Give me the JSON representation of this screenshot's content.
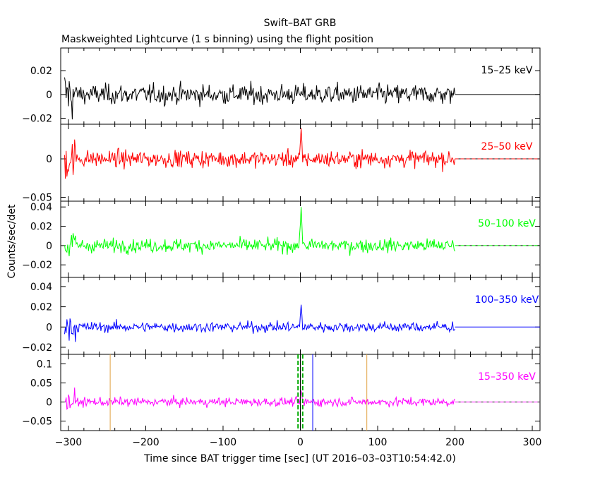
{
  "title": "Swift–BAT GRB",
  "subtitle": "Maskweighted Lightcurve (1 s binning) using the flight position",
  "chart_data": {
    "type": "line",
    "xlabel": "Time since BAT trigger time [sec] (UT 2016–03–03T10:54:42.0)",
    "ylabel": "Counts/sec/det",
    "xlim": [
      -310,
      310
    ],
    "x_ticks": [
      "−300",
      "−200",
      "−100",
      "0",
      "100",
      "200",
      "300"
    ],
    "x_tick_values": [
      -300,
      -200,
      -100,
      0,
      100,
      200,
      300
    ],
    "data_x_range": [
      -305,
      200
    ],
    "panels": [
      {
        "band": "15–25 keV",
        "color": "#000000",
        "ylim": [
          -0.025,
          0.039
        ],
        "y_ticks": [
          "0.02",
          "0",
          "−0.02"
        ],
        "y_tick_values": [
          0.02,
          0,
          -0.02
        ],
        "noise_sigma": 0.0065,
        "spike_height": 0.0,
        "zero_line_style": "solid"
      },
      {
        "band": "25–50 keV",
        "color": "#ff0000",
        "ylim": [
          -0.055,
          0.045
        ],
        "y_ticks": [
          "0",
          "−0.05"
        ],
        "y_tick_values": [
          0,
          -0.05
        ],
        "noise_sigma": 0.0085,
        "spike_height": 0.04,
        "zero_line_style": "dashed"
      },
      {
        "band": "50–100 keV",
        "color": "#00ff00",
        "ylim": [
          -0.033,
          0.046
        ],
        "y_ticks": [
          "0.04",
          "0.02",
          "0",
          "−0.02"
        ],
        "y_tick_values": [
          0.04,
          0.02,
          0,
          -0.02
        ],
        "noise_sigma": 0.0055,
        "spike_height": 0.04,
        "zero_line_style": "dashed"
      },
      {
        "band": "100–350 keV",
        "color": "#0000ff",
        "ylim": [
          -0.027,
          0.049
        ],
        "y_ticks": [
          "0.04",
          "0.02",
          "0",
          "−0.02"
        ],
        "y_tick_values": [
          0.04,
          0.02,
          0,
          -0.02
        ],
        "noise_sigma": 0.004,
        "spike_height": 0.022,
        "zero_line_style": "solid"
      },
      {
        "band": "15–350 keV",
        "color": "#ff00ff",
        "ylim": [
          -0.075,
          0.125
        ],
        "y_ticks": [
          "0.1",
          "0.05",
          "0",
          "−0.05"
        ],
        "y_tick_values": [
          0.1,
          0.05,
          0,
          -0.05
        ],
        "noise_sigma": 0.009,
        "spike_height": 0.03,
        "zero_line_style": "dashed"
      }
    ],
    "markers": [
      {
        "x": -246,
        "color": "#e0a040",
        "style": "solid"
      },
      {
        "x": 86,
        "color": "#e0a040",
        "style": "solid"
      },
      {
        "x": -3,
        "color": "#00aa00",
        "style": "dashed"
      },
      {
        "x": 3,
        "color": "#00aa00",
        "style": "dashed"
      },
      {
        "x": 0,
        "color": "#000000",
        "style": "solid"
      },
      {
        "x": 16,
        "color": "#0000ff",
        "style": "solid"
      }
    ]
  }
}
